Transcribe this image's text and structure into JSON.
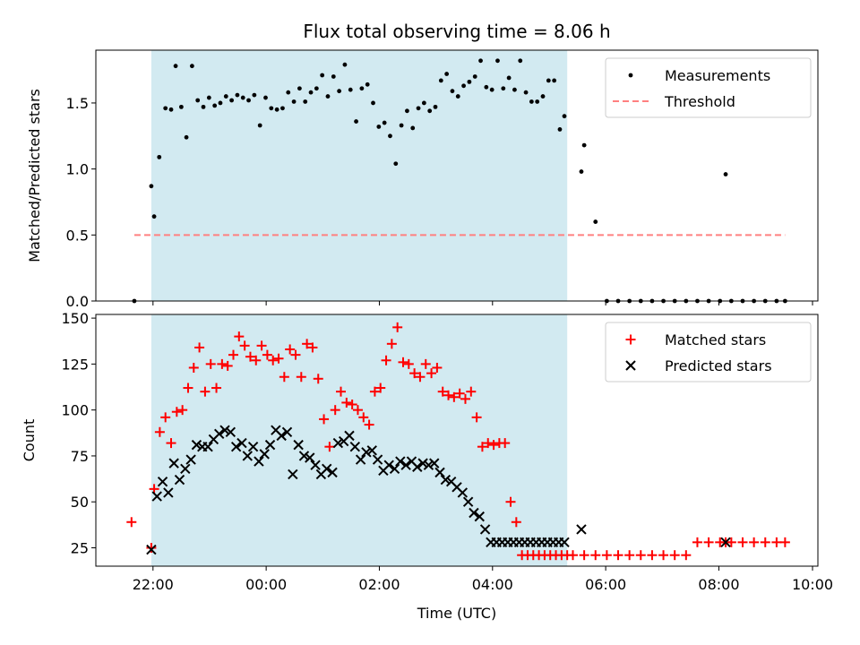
{
  "title": "Flux total observing time = 8.06 h",
  "chart_data": [
    {
      "type": "scatter",
      "panel": "top",
      "ylabel": "Matched/Predicted stars",
      "ylim": [
        0,
        1.9
      ],
      "yticks": [
        0.0,
        0.5,
        1.0,
        1.5
      ],
      "ytick_labels": [
        "0.0",
        "0.5",
        "1.0",
        "1.5"
      ],
      "xlim": [
        -2.63,
        10.13
      ],
      "shaded_interval": [
        -1.65,
        5.7
      ],
      "shade_color": "#add8e6",
      "legend_position": "upper right",
      "series": [
        {
          "name": "Measurements",
          "marker": "dot",
          "color": "#000000",
          "x": [
            -1.95,
            -1.65,
            -1.6,
            -1.51,
            -1.4,
            -1.3,
            -1.22,
            -1.12,
            -1.03,
            -0.93,
            -0.83,
            -0.73,
            -0.63,
            -0.53,
            -0.43,
            -0.33,
            -0.23,
            -0.13,
            -0.03,
            0.07,
            0.17,
            0.27,
            0.37,
            0.47,
            0.57,
            0.67,
            0.77,
            0.87,
            0.97,
            1.07,
            1.17,
            1.27,
            1.37,
            1.47,
            1.57,
            1.67,
            1.77,
            1.87,
            1.97,
            2.07,
            2.17,
            2.27,
            2.37,
            2.47,
            2.57,
            2.67,
            2.77,
            2.87,
            2.97,
            3.07,
            3.17,
            3.27,
            3.37,
            3.47,
            3.57,
            3.67,
            3.77,
            3.87,
            3.97,
            4.07,
            4.17,
            4.27,
            4.37,
            4.47,
            4.57,
            4.67,
            4.77,
            4.87,
            4.97,
            5.07,
            5.17,
            5.27,
            5.37,
            5.47,
            5.57,
            5.65,
            5.95,
            6.0,
            6.2,
            6.4,
            6.6,
            6.8,
            7.0,
            7.2,
            7.4,
            7.6,
            7.8,
            8.0,
            8.2,
            8.4,
            8.5,
            8.6,
            8.8,
            9.0,
            9.2,
            9.4,
            9.55
          ],
          "y": [
            0.0,
            0.87,
            0.64,
            1.09,
            1.46,
            1.45,
            1.78,
            1.47,
            1.24,
            1.78,
            1.52,
            1.47,
            1.54,
            1.48,
            1.5,
            1.55,
            1.52,
            1.56,
            1.54,
            1.52,
            1.56,
            1.33,
            1.54,
            1.46,
            1.45,
            1.46,
            1.58,
            1.51,
            1.61,
            1.51,
            1.58,
            1.61,
            1.71,
            1.55,
            1.7,
            1.59,
            1.79,
            1.6,
            1.36,
            1.61,
            1.64,
            1.5,
            1.32,
            1.35,
            1.25,
            1.04,
            1.33,
            1.44,
            1.31,
            1.46,
            1.5,
            1.44,
            1.47,
            1.67,
            1.72,
            1.59,
            1.55,
            1.63,
            1.66,
            1.7,
            1.82,
            1.62,
            1.6,
            1.82,
            1.61,
            1.69,
            1.6,
            1.82,
            1.58,
            1.51,
            1.51,
            1.55,
            1.67,
            1.67,
            1.3,
            1.4,
            0.98,
            1.18,
            0.6,
            0.0,
            0.0,
            0.0,
            0.0,
            0.0,
            0.0,
            0.0,
            0.0,
            0.0,
            0.0,
            0.0,
            0.96,
            0.0,
            0.0,
            0.0,
            0.0,
            0.0,
            0.0
          ]
        },
        {
          "name": "Threshold",
          "marker": "dashed-line",
          "color": "#ff8080",
          "x": [
            -1.95,
            9.55
          ],
          "y": [
            0.5,
            0.5
          ]
        }
      ]
    },
    {
      "type": "scatter",
      "panel": "bottom",
      "xlabel": "Time (UTC)",
      "ylabel": "Count",
      "ylim": [
        15,
        152
      ],
      "yticks": [
        25,
        50,
        75,
        100,
        125,
        150
      ],
      "ytick_labels": [
        "25",
        "50",
        "75",
        "100",
        "125",
        "150"
      ],
      "xlim": [
        -2.63,
        10.13
      ],
      "xticks": [
        -1.62,
        0.38,
        2.38,
        4.38,
        6.38,
        8.38,
        10.38
      ],
      "xtick_labels": [
        "22:00",
        "00:00",
        "02:00",
        "04:00",
        "06:00",
        "08:00",
        "10:00"
      ],
      "shaded_interval": [
        -1.65,
        5.7
      ],
      "shade_color": "#add8e6",
      "legend_position": "upper right",
      "series": [
        {
          "name": "Matched stars",
          "marker": "plus",
          "color": "#ff0000",
          "x": [
            -2.0,
            -1.65,
            -1.6,
            -1.5,
            -1.4,
            -1.3,
            -1.2,
            -1.1,
            -1.0,
            -0.9,
            -0.8,
            -0.7,
            -0.6,
            -0.5,
            -0.4,
            -0.3,
            -0.2,
            -0.1,
            0.0,
            0.1,
            0.2,
            0.3,
            0.4,
            0.5,
            0.6,
            0.7,
            0.8,
            0.9,
            1.0,
            1.1,
            1.2,
            1.3,
            1.4,
            1.5,
            1.6,
            1.7,
            1.8,
            1.9,
            2.0,
            2.1,
            2.2,
            2.3,
            2.4,
            2.5,
            2.6,
            2.7,
            2.8,
            2.9,
            3.0,
            3.1,
            3.2,
            3.3,
            3.4,
            3.5,
            3.6,
            3.7,
            3.8,
            3.9,
            4.0,
            4.1,
            4.2,
            4.3,
            4.4,
            4.5,
            4.6,
            4.7,
            4.8,
            4.9,
            5.0,
            5.1,
            5.2,
            5.3,
            5.4,
            5.5,
            5.6,
            5.7,
            5.8,
            6.0,
            6.2,
            6.4,
            6.6,
            6.8,
            7.0,
            7.2,
            7.4,
            7.6,
            7.8,
            8.0,
            8.2,
            8.4,
            8.5,
            8.6,
            8.8,
            9.0,
            9.2,
            9.4,
            9.55
          ],
          "y": [
            39,
            25,
            57,
            88,
            96,
            82,
            99,
            100,
            112,
            123,
            134,
            110,
            125,
            112,
            125,
            124,
            130,
            140,
            135,
            129,
            127,
            135,
            130,
            127,
            128,
            118,
            133,
            130,
            118,
            136,
            134,
            117,
            95,
            80,
            100,
            110,
            104,
            103,
            100,
            96,
            92,
            110,
            112,
            127,
            136,
            145,
            126,
            125,
            120,
            118,
            125,
            120,
            123,
            110,
            108,
            107,
            109,
            106,
            110,
            96,
            80,
            82,
            81,
            82,
            82,
            50,
            39,
            21,
            21,
            21,
            21,
            21,
            21,
            21,
            21,
            21,
            21,
            21,
            21,
            21,
            21,
            21,
            21,
            21,
            21,
            21,
            21,
            28,
            28,
            28,
            28,
            28,
            28,
            28,
            28,
            28,
            28
          ],
          "note": null
        },
        {
          "name": "Predicted stars",
          "marker": "x",
          "color": "#000000",
          "x": [
            -1.65,
            -1.55,
            -1.45,
            -1.35,
            -1.25,
            -1.15,
            -1.05,
            -0.95,
            -0.85,
            -0.75,
            -0.65,
            -0.55,
            -0.45,
            -0.35,
            -0.25,
            -0.15,
            -0.05,
            0.05,
            0.15,
            0.25,
            0.35,
            0.45,
            0.55,
            0.65,
            0.75,
            0.85,
            0.95,
            1.05,
            1.15,
            1.25,
            1.35,
            1.45,
            1.55,
            1.65,
            1.75,
            1.85,
            1.95,
            2.05,
            2.15,
            2.25,
            2.35,
            2.45,
            2.55,
            2.65,
            2.75,
            2.85,
            2.95,
            3.05,
            3.15,
            3.25,
            3.35,
            3.45,
            3.55,
            3.65,
            3.75,
            3.85,
            3.95,
            4.05,
            4.15,
            4.25,
            4.35,
            4.45,
            4.55,
            4.65,
            4.75,
            4.85,
            4.95,
            5.05,
            5.15,
            5.25,
            5.35,
            5.45,
            5.55,
            5.65,
            5.95,
            8.5
          ],
          "y": [
            24,
            53,
            61,
            55,
            71,
            62,
            68,
            73,
            81,
            80,
            80,
            84,
            87,
            89,
            88,
            80,
            82,
            75,
            80,
            72,
            76,
            81,
            89,
            86,
            88,
            65,
            81,
            75,
            74,
            70,
            65,
            68,
            66,
            82,
            83,
            86,
            80,
            73,
            77,
            78,
            73,
            67,
            70,
            68,
            72,
            70,
            72,
            69,
            71,
            70,
            71,
            66,
            62,
            61,
            58,
            55,
            50,
            44,
            42,
            35,
            28,
            28,
            28,
            28,
            28,
            28,
            28,
            28,
            28,
            28,
            28,
            28,
            28,
            28,
            35,
            28
          ],
          "note": null
        }
      ]
    }
  ]
}
